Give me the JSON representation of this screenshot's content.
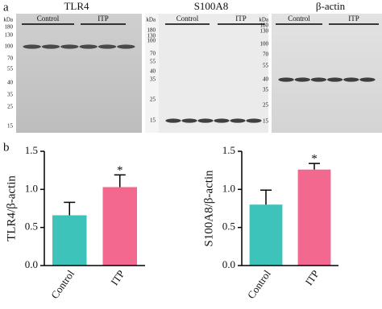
{
  "panel_a": {
    "label": "a",
    "blots": [
      {
        "title": "TLR4",
        "unit": "kDa",
        "markers": [
          "180",
          "130",
          "100",
          "70",
          "55",
          "40",
          "35",
          "25",
          "15"
        ],
        "groups": [
          "Control",
          "ITP"
        ]
      },
      {
        "title": "S100A8",
        "unit": "kDa",
        "markers": [
          "180",
          "130",
          "100",
          "70",
          "55",
          "40",
          "35",
          "25",
          "15"
        ],
        "groups": [
          "Control",
          "ITP"
        ]
      },
      {
        "title": "β-actin",
        "unit": "kDa",
        "markers": [
          "180",
          "130",
          "100",
          "70",
          "55",
          "40",
          "35",
          "25",
          "15"
        ],
        "groups": [
          "Control",
          "ITP"
        ]
      }
    ]
  },
  "panel_b_label": "b",
  "chart_data": [
    {
      "type": "bar",
      "y_label": "TLR4/β-actin",
      "categories": [
        "Control",
        "ITP"
      ],
      "values": [
        0.66,
        1.03
      ],
      "errors": [
        0.17,
        0.16
      ],
      "colors": [
        "#3dc3b9",
        "#f2688f"
      ],
      "value_annotations": [
        null,
        "*"
      ],
      "ylim": [
        0,
        1.5
      ],
      "yticks": [
        {
          "value": 0,
          "label": "0.0"
        },
        {
          "value": 0.5,
          "label": "0.5"
        },
        {
          "value": 1,
          "label": "1.0"
        },
        {
          "value": 1.5,
          "label": "1.5"
        }
      ]
    },
    {
      "type": "bar",
      "y_label": "S100A8/β-actin",
      "categories": [
        "Control",
        "ITP"
      ],
      "values": [
        0.8,
        1.26
      ],
      "errors": [
        0.19,
        0.08
      ],
      "colors": [
        "#3dc3b9",
        "#f2688f"
      ],
      "value_annotations": [
        null,
        "*"
      ],
      "ylim": [
        0,
        1.5
      ],
      "yticks": [
        {
          "value": 0,
          "label": "0.0"
        },
        {
          "value": 0.5,
          "label": "0.5"
        },
        {
          "value": 1,
          "label": "1.0"
        },
        {
          "value": 1.5,
          "label": "1.5"
        }
      ]
    }
  ]
}
